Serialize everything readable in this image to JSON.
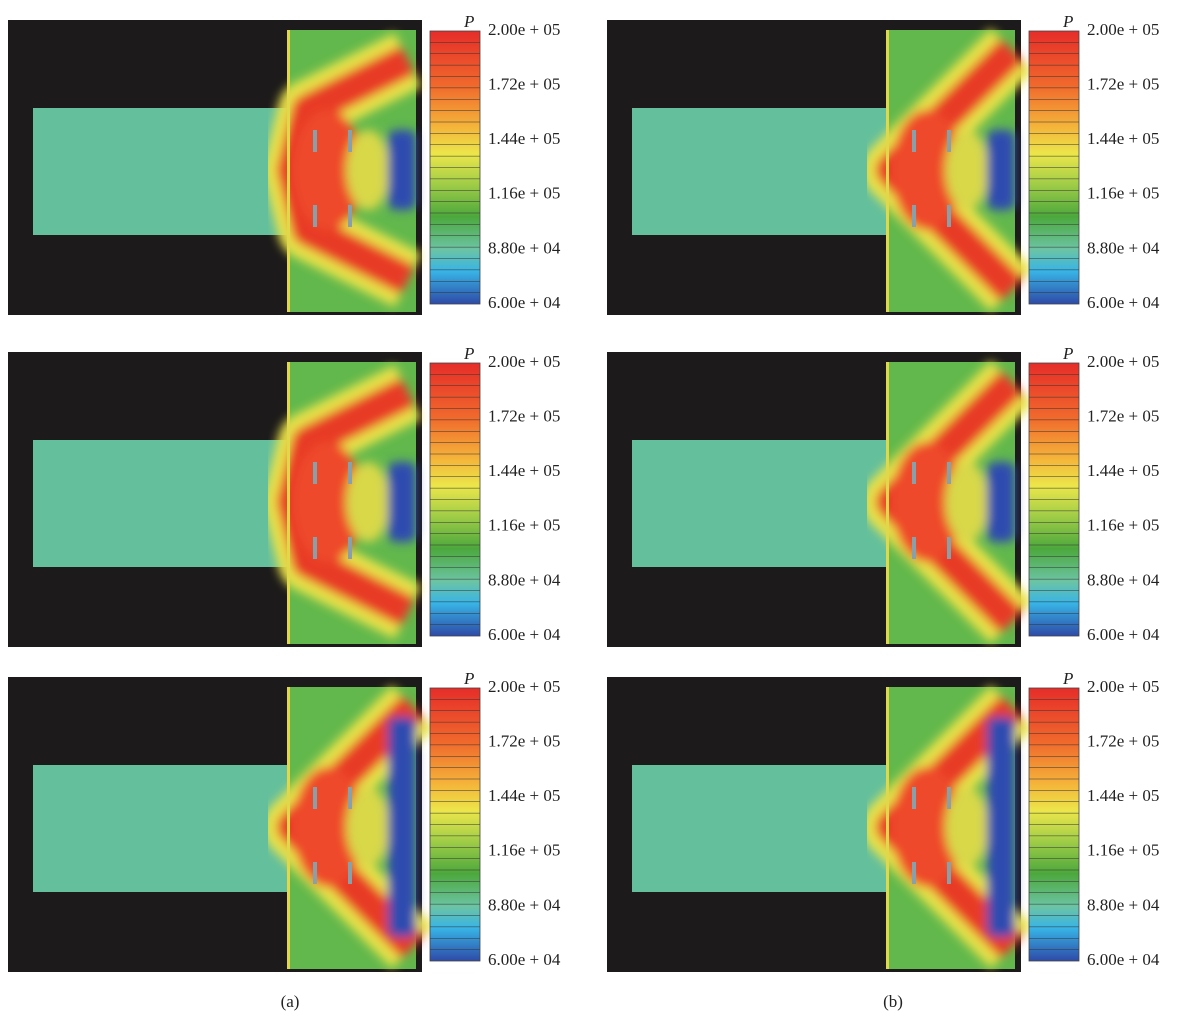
{
  "figure": {
    "columns": [
      {
        "label": "(a)",
        "panels": [
          {
            "colorbar": {
              "title": "P",
              "ticks": [
                "2.00e + 05",
                "1.72e + 05",
                "1.44e + 05",
                "1.16e + 05",
                "8.80e + 04",
                "6.00e + 04"
              ]
            }
          },
          {
            "colorbar": {
              "title": "P",
              "ticks": [
                "2.00e + 05",
                "1.72e + 05",
                "1.44e + 05",
                "1.16e + 05",
                "8.80e + 04",
                "6.00e + 04"
              ]
            }
          },
          {
            "colorbar": {
              "title": "P",
              "ticks": [
                "2.00e + 05",
                "1.72e + 05",
                "1.44e + 05",
                "1.16e + 05",
                "8.80e + 04",
                "6.00e + 04"
              ]
            }
          }
        ]
      },
      {
        "label": "(b)",
        "panels": [
          {
            "colorbar": {
              "title": "P",
              "ticks": [
                "2.00e + 05",
                "1.72e + 05",
                "1.44e + 05",
                "1.16e + 05",
                "8.80e + 04",
                "6.00e + 04"
              ]
            }
          },
          {
            "colorbar": {
              "title": "P",
              "ticks": [
                "2.00e + 05",
                "1.72e + 05",
                "1.44e + 05",
                "1.16e + 05",
                "8.80e + 04",
                "6.00e + 04"
              ]
            }
          },
          {
            "colorbar": {
              "title": "P",
              "ticks": [
                "2.00e + 05",
                "1.72e + 05",
                "1.44e + 05",
                "1.16e + 05",
                "8.80e + 04",
                "6.00e + 04"
              ]
            }
          }
        ]
      }
    ]
  }
}
